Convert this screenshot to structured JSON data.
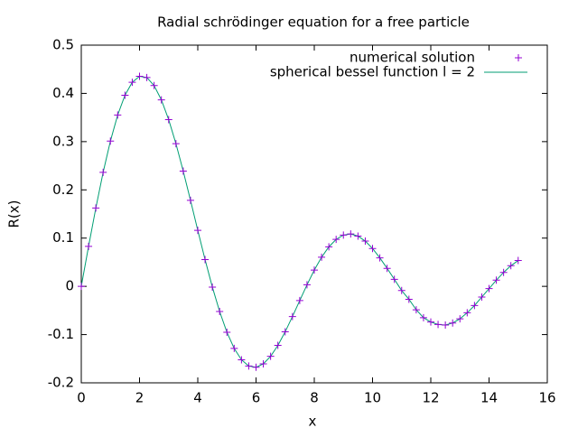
{
  "chart_data": {
    "type": "line",
    "title": "Radial schrödinger equation for a free particle",
    "x_label": "x",
    "y_label": "R(x)",
    "x": [
      0,
      0.25,
      0.5,
      0.75,
      1,
      1.25,
      1.5,
      1.75,
      2,
      2.25,
      2.5,
      2.75,
      3,
      3.25,
      3.5,
      3.75,
      4,
      4.25,
      4.5,
      4.75,
      5,
      5.25,
      5.5,
      5.75,
      6,
      6.25,
      6.5,
      6.75,
      7,
      7.25,
      7.5,
      7.75,
      8,
      8.25,
      8.5,
      8.75,
      9,
      9.25,
      9.5,
      9.75,
      10,
      10.25,
      10.5,
      10.75,
      11,
      11.25,
      11.5,
      11.75,
      12,
      12.25,
      12.5,
      12.75,
      13,
      13.25,
      13.5,
      13.75,
      14,
      14.25,
      14.5,
      14.75,
      15
    ],
    "series": [
      {
        "name": "numerical solution",
        "color": "#9400d3",
        "style": "points",
        "values": [
          0,
          0.0828,
          0.1625,
          0.2364,
          0.3012,
          0.3552,
          0.3961,
          0.4231,
          0.4354,
          0.4329,
          0.4162,
          0.3866,
          0.3457,
          0.2957,
          0.239,
          0.1782,
          0.1161,
          0.0554,
          -0.0015,
          -0.0522,
          -0.0951,
          -0.1287,
          -0.1522,
          -0.1652,
          -0.1678,
          -0.1607,
          -0.1451,
          -0.1224,
          -0.0943,
          -0.0626,
          -0.0295,
          0.0032,
          0.0337,
          0.0603,
          0.0819,
          0.0974,
          0.1063,
          0.1085,
          0.1042,
          0.0938,
          0.0785,
          0.0591,
          0.0373,
          0.0145,
          -0.0087,
          -0.0268,
          -0.0486,
          -0.0649,
          -0.074,
          -0.079,
          -0.0802,
          -0.076,
          -0.0673,
          -0.0548,
          -0.0397,
          -0.0223,
          -0.0047,
          0.0128,
          0.0289,
          0.0428,
          0.0535
        ]
      },
      {
        "name": "spherical bessel function l = 2",
        "color": "#009e73",
        "style": "line",
        "values": [
          0,
          0.0828,
          0.1625,
          0.2364,
          0.3012,
          0.3552,
          0.3961,
          0.4231,
          0.4354,
          0.4329,
          0.4162,
          0.3866,
          0.3457,
          0.2957,
          0.239,
          0.1782,
          0.1161,
          0.0554,
          -0.0015,
          -0.0522,
          -0.0951,
          -0.1287,
          -0.1522,
          -0.1652,
          -0.1678,
          -0.1607,
          -0.1451,
          -0.1224,
          -0.0943,
          -0.0626,
          -0.0295,
          0.0032,
          0.0337,
          0.0603,
          0.0819,
          0.0974,
          0.1063,
          0.1085,
          0.1042,
          0.0938,
          0.0785,
          0.0591,
          0.0373,
          0.0145,
          -0.0087,
          -0.0268,
          -0.0486,
          -0.0649,
          -0.074,
          -0.079,
          -0.0802,
          -0.076,
          -0.0673,
          -0.0548,
          -0.0397,
          -0.0223,
          -0.0047,
          0.0128,
          0.0289,
          0.0428,
          0.0535
        ]
      }
    ],
    "xlim": [
      0,
      16
    ],
    "xticks": [
      0,
      2,
      4,
      6,
      8,
      10,
      12,
      14,
      16
    ],
    "ylim": [
      -0.2,
      0.5
    ],
    "yticks": [
      -0.2,
      -0.1,
      0,
      0.1,
      0.2,
      0.3,
      0.4,
      0.5
    ],
    "grid": false,
    "legend": "top-right"
  }
}
